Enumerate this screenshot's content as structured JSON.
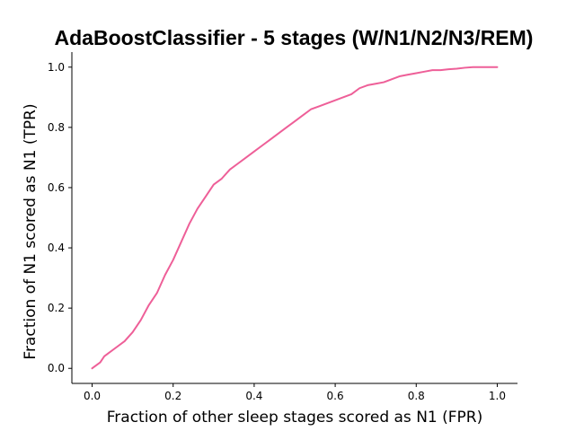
{
  "chart_data": {
    "type": "line",
    "title": "AdaBoostClassifier - 5 stages (W/N1/N2/N3/REM)",
    "xlabel": "Fraction of other sleep stages scored as N1 (FPR)",
    "ylabel": "Fraction of N1 scored as N1 (TPR)",
    "xlim": [
      -0.05,
      1.05
    ],
    "ylim": [
      -0.05,
      1.05
    ],
    "xticks": [
      0.0,
      0.2,
      0.4,
      0.6,
      0.8,
      1.0
    ],
    "xtick_labels": [
      "0.0",
      "0.2",
      "0.4",
      "0.6",
      "0.8",
      "1.0"
    ],
    "yticks": [
      0.0,
      0.2,
      0.4,
      0.6,
      0.8,
      1.0
    ],
    "ytick_labels": [
      "0.0",
      "0.2",
      "0.4",
      "0.6",
      "0.8",
      "1.0"
    ],
    "grid": false,
    "line_color": "#ee5f98",
    "series": [
      {
        "x": [
          0.0,
          0.02,
          0.03,
          0.04,
          0.06,
          0.08,
          0.1,
          0.12,
          0.14,
          0.16,
          0.18,
          0.2,
          0.22,
          0.24,
          0.26,
          0.28,
          0.3,
          0.32,
          0.34,
          0.36,
          0.38,
          0.4,
          0.42,
          0.44,
          0.46,
          0.48,
          0.5,
          0.52,
          0.54,
          0.56,
          0.58,
          0.6,
          0.62,
          0.64,
          0.66,
          0.68,
          0.7,
          0.72,
          0.74,
          0.76,
          0.78,
          0.8,
          0.82,
          0.84,
          0.86,
          0.88,
          0.9,
          0.92,
          0.94,
          0.96,
          0.98,
          1.0
        ],
        "y": [
          0.0,
          0.02,
          0.04,
          0.05,
          0.07,
          0.09,
          0.12,
          0.16,
          0.21,
          0.25,
          0.31,
          0.36,
          0.42,
          0.48,
          0.53,
          0.57,
          0.61,
          0.63,
          0.66,
          0.68,
          0.7,
          0.72,
          0.74,
          0.76,
          0.78,
          0.8,
          0.82,
          0.84,
          0.86,
          0.87,
          0.88,
          0.89,
          0.9,
          0.91,
          0.93,
          0.94,
          0.945,
          0.95,
          0.96,
          0.97,
          0.975,
          0.98,
          0.985,
          0.99,
          0.99,
          0.993,
          0.995,
          0.998,
          1.0,
          1.0,
          1.0,
          1.0
        ]
      }
    ]
  }
}
